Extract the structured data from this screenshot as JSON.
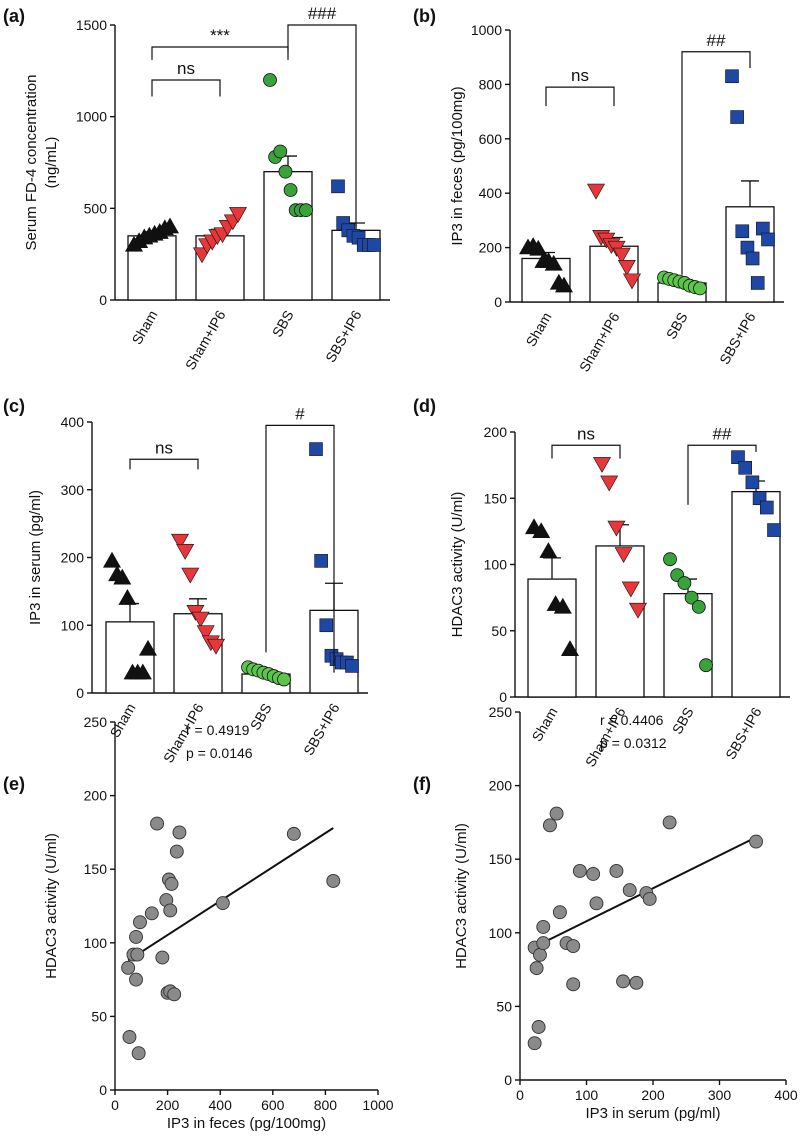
{
  "figure": {
    "colors": {
      "black": "#111111",
      "red": "#e8373a",
      "green": "#3aa23b",
      "light_green": "#5cc64a",
      "blue": "#1f48a6",
      "gray": "#8a8a8a"
    }
  },
  "chart_data": [
    {
      "id": "a",
      "panel_label": "(a)",
      "type": "bar",
      "ylabel": "Serum FD-4 concentration\n(ng/mL)",
      "ylim": [
        0,
        1500
      ],
      "yticks": [
        0,
        500,
        1000,
        1500
      ],
      "categories": [
        "Sham",
        "Sham+IP6",
        "SBS",
        "SBS+IP6"
      ],
      "bars": [
        {
          "category": "Sham",
          "mean": 350,
          "sem": 22,
          "marker": "triangle",
          "color": "black",
          "points": [
            300,
            320,
            340,
            350,
            360,
            370,
            390,
            400
          ]
        },
        {
          "category": "Sham+IP6",
          "mean": 350,
          "sem": 35,
          "marker": "triangle-down",
          "color": "red",
          "points": [
            250,
            300,
            320,
            350,
            360,
            400,
            430,
            470
          ]
        },
        {
          "category": "SBS",
          "mean": 700,
          "sem": 85,
          "marker": "circle",
          "color": "green",
          "points": [
            1200,
            780,
            810,
            700,
            600,
            490,
            490,
            490
          ]
        },
        {
          "category": "SBS+IP6",
          "mean": 380,
          "sem": 40,
          "marker": "square",
          "color": "blue",
          "points": [
            620,
            420,
            380,
            350,
            340,
            300,
            300,
            300
          ]
        }
      ],
      "comparisons": [
        {
          "from": "Sham",
          "to": "Sham+IP6",
          "label": "ns",
          "y": 1200,
          "drop": 90
        },
        {
          "from": "Sham",
          "to": "SBS",
          "label": "***",
          "y": 1380,
          "drop": 70
        },
        {
          "from": "SBS",
          "to": "SBS+IP6",
          "label": "###",
          "y": 1500,
          "drop_left": 150,
          "drop_right": 1100
        }
      ]
    },
    {
      "id": "b",
      "panel_label": "(b)",
      "type": "bar",
      "ylabel": "IP3 in feces (pg/100mg)",
      "ylim": [
        0,
        1000
      ],
      "yticks": [
        0,
        200,
        400,
        600,
        800,
        1000
      ],
      "categories": [
        "Sham",
        "Sham+IP6",
        "SBS",
        "SBS+IP6"
      ],
      "bars": [
        {
          "category": "Sham",
          "mean": 160,
          "sem": 22,
          "marker": "triangle",
          "color": "black",
          "points": [
            200,
            205,
            195,
            150,
            150,
            140,
            70,
            60
          ]
        },
        {
          "category": "Sham+IP6",
          "mean": 205,
          "sem": 32,
          "marker": "triangle-down",
          "color": "red",
          "points": [
            410,
            240,
            230,
            210,
            200,
            175,
            130,
            80
          ]
        },
        {
          "category": "SBS",
          "mean": 70,
          "sem": 8,
          "marker": "circle",
          "color": "light_green",
          "points": [
            90,
            85,
            80,
            75,
            70,
            60,
            55,
            50
          ]
        },
        {
          "category": "SBS+IP6",
          "mean": 350,
          "sem": 95,
          "marker": "square",
          "color": "blue",
          "points": [
            830,
            680,
            260,
            200,
            160,
            70,
            270,
            230
          ]
        }
      ],
      "comparisons": [
        {
          "from": "Sham",
          "to": "Sham+IP6",
          "label": "ns",
          "y": 790,
          "drop": 70
        },
        {
          "from": "SBS",
          "to": "SBS+IP6",
          "label": "##",
          "y": 920,
          "drop_left": 820,
          "drop_right": 60
        }
      ]
    },
    {
      "id": "c",
      "panel_label": "(c)",
      "type": "bar",
      "ylabel": "IP3 in serum (pg/ml)",
      "ylim": [
        0,
        400
      ],
      "yticks": [
        0,
        100,
        200,
        300,
        400
      ],
      "categories": [
        "Sham",
        "Sham+IP6",
        "SBS",
        "SBS+IP6"
      ],
      "bars": [
        {
          "category": "Sham",
          "mean": 105,
          "sem": 27,
          "marker": "triangle",
          "color": "black",
          "points": [
            195,
            175,
            170,
            140,
            30,
            30,
            30,
            65
          ]
        },
        {
          "category": "Sham+IP6",
          "mean": 117,
          "sem": 22,
          "marker": "triangle-down",
          "color": "red",
          "points": [
            225,
            210,
            175,
            120,
            110,
            90,
            75,
            70
          ]
        },
        {
          "category": "SBS",
          "mean": 28,
          "sem": 4,
          "marker": "circle",
          "color": "light_green",
          "points": [
            38,
            35,
            33,
            30,
            28,
            25,
            22,
            20
          ]
        },
        {
          "category": "SBS+IP6",
          "mean": 122,
          "sem": 40,
          "marker": "square",
          "color": "blue",
          "points": [
            360,
            195,
            100,
            55,
            50,
            45,
            45,
            40
          ]
        }
      ],
      "comparisons": [
        {
          "from": "Sham",
          "to": "Sham+IP6",
          "label": "ns",
          "y": 345,
          "drop": 15
        },
        {
          "from": "SBS",
          "to": "SBS+IP6",
          "label": "#",
          "y": 395,
          "drop_left": 335,
          "drop_right": 365
        }
      ]
    },
    {
      "id": "d",
      "panel_label": "(d)",
      "type": "bar",
      "ylabel": "HDAC3 activity (U/ml)",
      "ylim": [
        0,
        200
      ],
      "yticks": [
        0,
        50,
        100,
        150,
        200
      ],
      "categories": [
        "Sham",
        "Sham+IP6",
        "SBS",
        "SBS+IP6"
      ],
      "bars": [
        {
          "category": "Sham",
          "mean": 89,
          "sem": 16,
          "marker": "triangle",
          "color": "black",
          "points": [
            128,
            125,
            110,
            70,
            68,
            36
          ]
        },
        {
          "category": "Sham+IP6",
          "mean": 114,
          "sem": 16,
          "marker": "triangle-down",
          "color": "red",
          "points": [
            176,
            162,
            128,
            108,
            82,
            66
          ]
        },
        {
          "category": "SBS",
          "mean": 78,
          "sem": 11,
          "marker": "circle",
          "color": "green",
          "points": [
            104,
            92,
            86,
            75,
            68,
            24
          ]
        },
        {
          "category": "SBS+IP6",
          "mean": 155,
          "sem": 8,
          "marker": "square",
          "color": "blue",
          "points": [
            181,
            173,
            162,
            150,
            143,
            126
          ]
        }
      ],
      "comparisons": [
        {
          "from": "Sham",
          "to": "Sham+IP6",
          "label": "ns",
          "y": 190,
          "drop": 10
        },
        {
          "from": "SBS",
          "to": "SBS+IP6",
          "label": "##",
          "y": 190,
          "drop_left": 45,
          "drop_right": 5
        }
      ]
    },
    {
      "id": "e",
      "panel_label": "(e)",
      "type": "scatter",
      "xlabel": "IP3 in feces (pg/100mg)",
      "ylabel": "HDAC3 activity (U/ml)",
      "xlim": [
        0,
        1000
      ],
      "xticks": [
        0,
        200,
        400,
        600,
        800,
        1000
      ],
      "ylim": [
        0,
        250
      ],
      "yticks": [
        0,
        50,
        100,
        150,
        200,
        250
      ],
      "r_text": "r = 0.4919",
      "p_text": "p = 0.0146",
      "fit": {
        "x": [
          50,
          830
        ],
        "y": [
          88,
          178
        ]
      },
      "points": [
        {
          "x": 55,
          "y": 36
        },
        {
          "x": 50,
          "y": 83
        },
        {
          "x": 70,
          "y": 92
        },
        {
          "x": 80,
          "y": 75
        },
        {
          "x": 80,
          "y": 104
        },
        {
          "x": 95,
          "y": 114
        },
        {
          "x": 90,
          "y": 25
        },
        {
          "x": 85,
          "y": 92
        },
        {
          "x": 140,
          "y": 120
        },
        {
          "x": 160,
          "y": 181
        },
        {
          "x": 180,
          "y": 90
        },
        {
          "x": 195,
          "y": 129
        },
        {
          "x": 205,
          "y": 143
        },
        {
          "x": 210,
          "y": 122
        },
        {
          "x": 200,
          "y": 66
        },
        {
          "x": 210,
          "y": 67
        },
        {
          "x": 215,
          "y": 140
        },
        {
          "x": 225,
          "y": 65
        },
        {
          "x": 235,
          "y": 162
        },
        {
          "x": 245,
          "y": 175
        },
        {
          "x": 410,
          "y": 127
        },
        {
          "x": 680,
          "y": 174
        },
        {
          "x": 830,
          "y": 142
        }
      ]
    },
    {
      "id": "f",
      "panel_label": "(f)",
      "type": "scatter",
      "xlabel": "IP3 in serum (pg/ml)",
      "ylabel": "HDAC3 activity (U/ml)",
      "xlim": [
        0,
        400
      ],
      "xticks": [
        0,
        100,
        200,
        300,
        400
      ],
      "ylim": [
        0,
        250
      ],
      "yticks": [
        0,
        50,
        100,
        150,
        200,
        250
      ],
      "r_text": "r = 0.4406",
      "p_text": "p = 0.0312",
      "fit": {
        "x": [
          20,
          360
        ],
        "y": [
          90,
          166
        ]
      },
      "points": [
        {
          "x": 22,
          "y": 25
        },
        {
          "x": 28,
          "y": 36
        },
        {
          "x": 25,
          "y": 76
        },
        {
          "x": 22,
          "y": 90
        },
        {
          "x": 30,
          "y": 85
        },
        {
          "x": 35,
          "y": 93
        },
        {
          "x": 35,
          "y": 104
        },
        {
          "x": 45,
          "y": 173
        },
        {
          "x": 55,
          "y": 181
        },
        {
          "x": 60,
          "y": 114
        },
        {
          "x": 70,
          "y": 93
        },
        {
          "x": 80,
          "y": 91
        },
        {
          "x": 80,
          "y": 65
        },
        {
          "x": 90,
          "y": 142
        },
        {
          "x": 110,
          "y": 140
        },
        {
          "x": 115,
          "y": 120
        },
        {
          "x": 145,
          "y": 142
        },
        {
          "x": 155,
          "y": 67
        },
        {
          "x": 165,
          "y": 129
        },
        {
          "x": 175,
          "y": 66
        },
        {
          "x": 190,
          "y": 127
        },
        {
          "x": 195,
          "y": 123
        },
        {
          "x": 225,
          "y": 175
        },
        {
          "x": 355,
          "y": 162
        }
      ]
    }
  ]
}
